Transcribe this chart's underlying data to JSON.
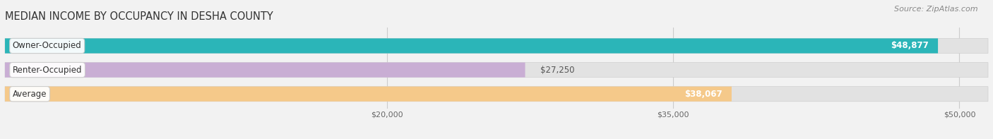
{
  "title": "MEDIAN INCOME BY OCCUPANCY IN DESHA COUNTY",
  "source": "Source: ZipAtlas.com",
  "categories": [
    "Owner-Occupied",
    "Renter-Occupied",
    "Average"
  ],
  "values": [
    48877,
    27250,
    38067
  ],
  "bar_colors": [
    "#2bb5b8",
    "#c9aed4",
    "#f5c98a"
  ],
  "value_labels": [
    "$48,877",
    "$27,250",
    "$38,067"
  ],
  "x_ticks": [
    20000,
    35000,
    50000
  ],
  "x_tick_labels": [
    "$20,000",
    "$35,000",
    "$50,000"
  ],
  "xmin": 0,
  "xmax": 51500,
  "bar_height": 0.62,
  "background_color": "#f2f2f2",
  "bar_bg_color": "#e2e2e2",
  "title_fontsize": 10.5,
  "source_fontsize": 8,
  "label_fontsize": 8.5,
  "value_fontsize": 8.5
}
